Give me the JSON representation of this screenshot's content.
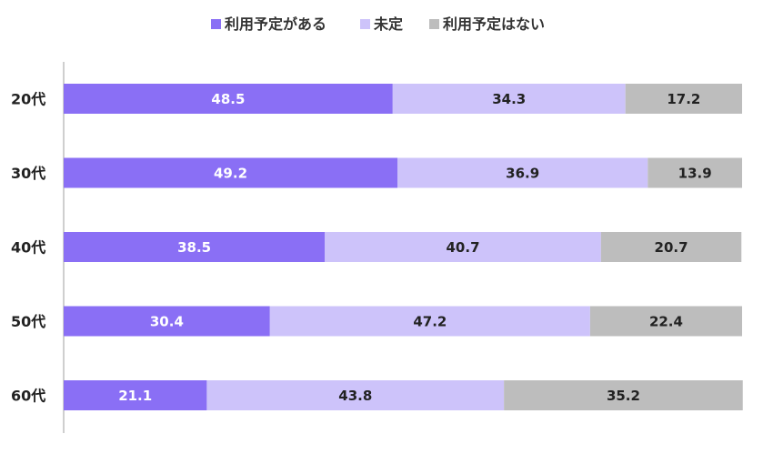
{
  "chart_data": {
    "type": "bar",
    "orientation": "horizontal",
    "stacked": true,
    "normalized_percent": true,
    "title": "",
    "xlabel": "",
    "ylabel": "",
    "xlim": [
      0,
      100
    ],
    "legend_position": "top-center",
    "categories": [
      "20代",
      "30代",
      "40代",
      "50代",
      "60代"
    ],
    "series": [
      {
        "name": "利用予定がある",
        "color": "#8a6ff5",
        "label_color": "#ffffff",
        "values": [
          48.5,
          49.2,
          38.5,
          30.4,
          21.1
        ]
      },
      {
        "name": "未定",
        "color": "#cdc3fa",
        "label_color": "#222222",
        "values": [
          34.3,
          36.9,
          40.7,
          47.2,
          43.8
        ]
      },
      {
        "name": "利用予定はない",
        "color": "#bdbdbd",
        "label_color": "#222222",
        "values": [
          17.2,
          13.9,
          20.7,
          22.4,
          35.2
        ]
      }
    ]
  }
}
